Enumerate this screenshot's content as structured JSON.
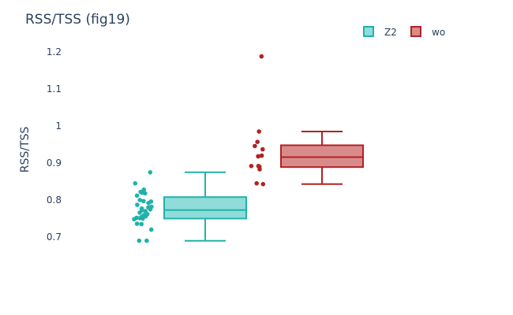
{
  "chart_data": {
    "type": "box",
    "title": "RSS/TSS (fig19)",
    "xlabel": "",
    "ylabel": "RSS/TSS",
    "ylim": [
      0.66,
      1.24
    ],
    "yticks": [
      0.7,
      0.8,
      0.9,
      1.0,
      1.1,
      1.2
    ],
    "ytick_labels": [
      "0.7",
      "0.8",
      "0.9",
      "1",
      "1.1",
      "1.2"
    ],
    "grid": false,
    "legend_position": "top-right",
    "series": [
      {
        "name": "Z2",
        "color": "#20b2aa",
        "fill": "#8fdcd8",
        "box": {
          "lowerfence": 0.69,
          "q1": 0.75,
          "median": 0.773,
          "q3": 0.808,
          "upperfence": 0.875
        },
        "points": [
          0.875,
          0.845,
          0.828,
          0.822,
          0.82,
          0.818,
          0.812,
          0.8,
          0.797,
          0.796,
          0.792,
          0.787,
          0.782,
          0.78,
          0.777,
          0.775,
          0.772,
          0.77,
          0.766,
          0.762,
          0.759,
          0.756,
          0.754,
          0.752,
          0.751,
          0.75,
          0.748,
          0.736,
          0.735,
          0.72,
          0.69,
          0.69
        ]
      },
      {
        "name": "wo",
        "color": "#b22222",
        "fill": "#d98b8c",
        "box": {
          "lowerfence": 0.843,
          "q1": 0.889,
          "median": 0.916,
          "q3": 0.948,
          "upperfence": 0.985
        },
        "points": [
          1.188,
          0.985,
          0.957,
          0.946,
          0.937,
          0.92,
          0.918,
          0.918,
          0.892,
          0.892,
          0.89,
          0.883,
          0.845,
          0.843
        ]
      }
    ]
  }
}
